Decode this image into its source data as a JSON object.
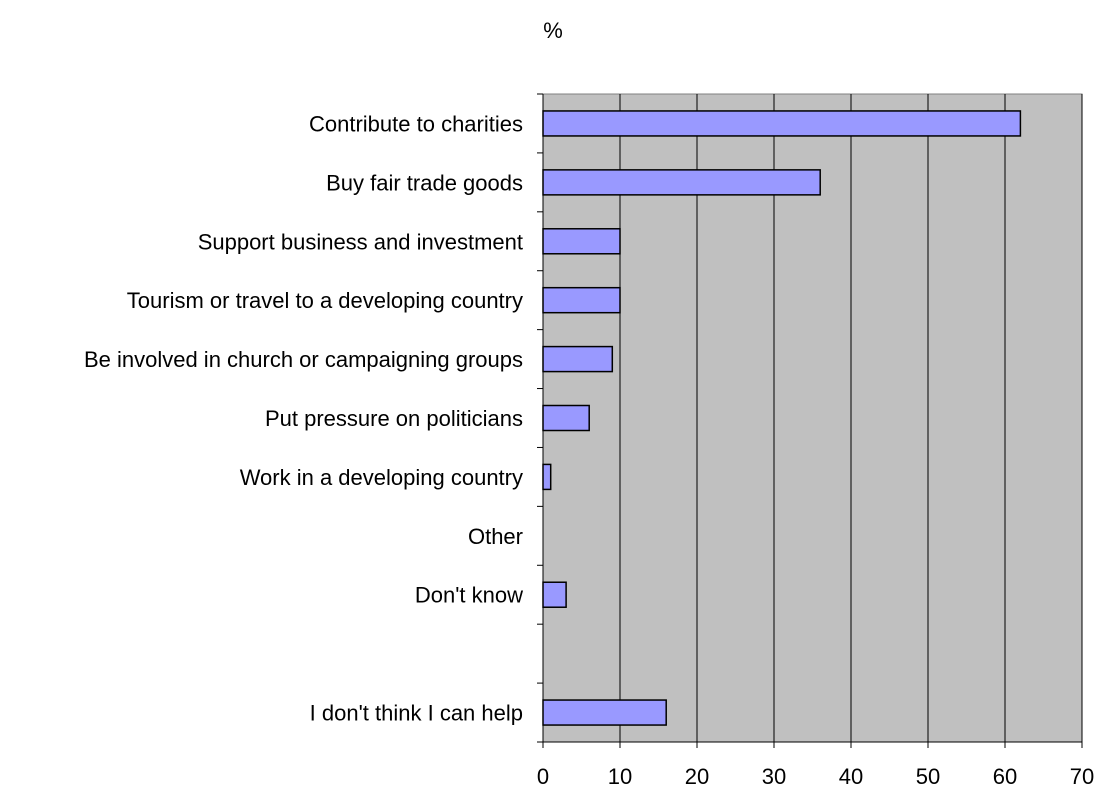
{
  "chart_data": {
    "type": "bar",
    "orientation": "horizontal",
    "unit_label": "%",
    "categories": [
      "Contribute to charities",
      "Buy fair trade goods",
      "Support business and investment",
      "Tourism or travel to a developing country",
      "Be involved in church or campaigning groups",
      "Put pressure on politicians",
      "Work in a developing country",
      "Other",
      "Don't know",
      "",
      "I don't think I can help"
    ],
    "values": [
      62,
      36,
      10,
      10,
      9,
      6,
      1,
      0,
      3,
      null,
      16
    ],
    "xlim": [
      0,
      70
    ],
    "x_ticks": [
      0,
      10,
      20,
      30,
      40,
      50,
      60,
      70
    ],
    "grid": true,
    "colors": {
      "bar": "#9999ff",
      "plot_background": "#c0c0c0"
    }
  }
}
